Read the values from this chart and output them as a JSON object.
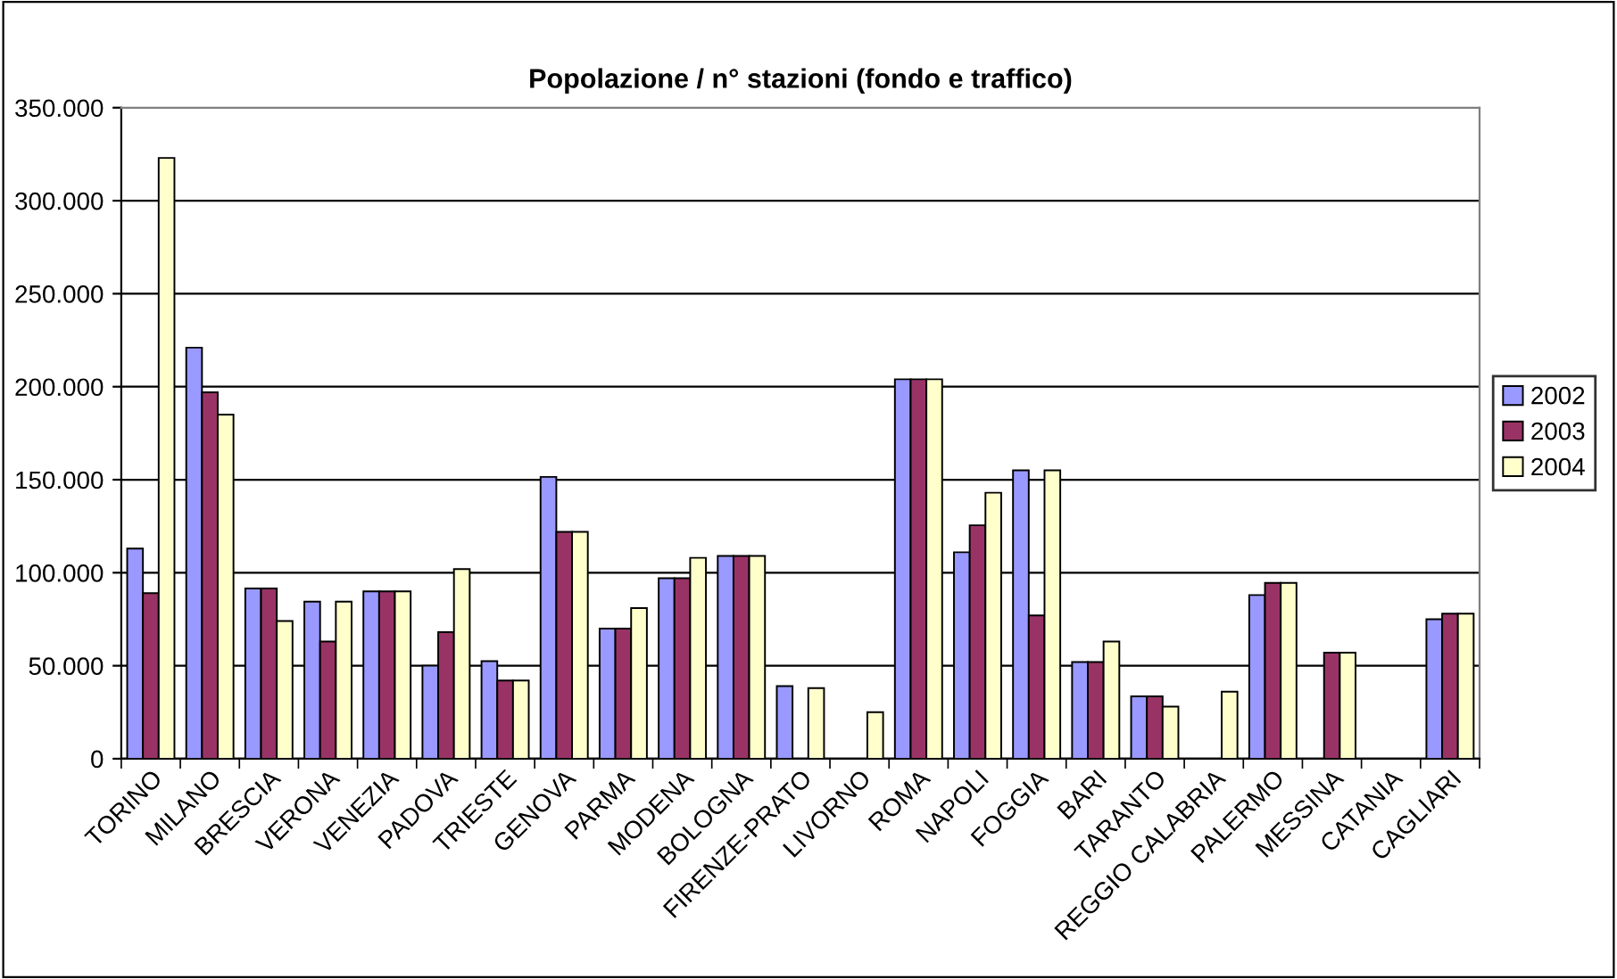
{
  "chart_data": {
    "type": "bar",
    "title": "Popolazione / n° stazioni (fondo e traffico)",
    "categories": [
      "TORINO",
      "MILANO",
      "BRESCIA",
      "VERONA",
      "VENEZIA",
      "PADOVA",
      "TRIESTE",
      "GENOVA",
      "PARMA",
      "MODENA",
      "BOLOGNA",
      "FIRENZE-PRATO",
      "LIVORNO",
      "ROMA",
      "NAPOLI",
      "FOGGIA",
      "BARI",
      "TARANTO",
      "REGGIO CALABRIA",
      "PALERMO",
      "MESSINA",
      "CATANIA",
      "CAGLIARI"
    ],
    "series": [
      {
        "name": "2002",
        "color": "#9999ff",
        "values": [
          113000,
          221000,
          91500,
          84500,
          90000,
          50000,
          52500,
          151500,
          70000,
          97000,
          109000,
          39000,
          null,
          204000,
          111000,
          155000,
          52000,
          33500,
          null,
          88000,
          null,
          null,
          75000
        ]
      },
      {
        "name": "2003",
        "color": "#993366",
        "values": [
          89000,
          197000,
          91500,
          63000,
          90000,
          68000,
          42000,
          122000,
          70000,
          97000,
          109000,
          null,
          null,
          204000,
          125500,
          77000,
          52000,
          33500,
          null,
          94500,
          57000,
          null,
          78000
        ]
      },
      {
        "name": "2004",
        "color": "#ffffcc",
        "values": [
          323000,
          185000,
          74000,
          84500,
          90000,
          102000,
          42000,
          122000,
          81000,
          108000,
          109000,
          38000,
          25000,
          204000,
          143000,
          155000,
          63000,
          28000,
          36000,
          94500,
          57000,
          null,
          78000
        ]
      }
    ],
    "ylim": [
      0,
      350000
    ],
    "yticks": [
      0,
      {
        "value": 50000,
        "label": "50.000"
      },
      {
        "value": 100000,
        "label": "100.000"
      },
      {
        "value": 150000,
        "label": "150.000"
      },
      {
        "value": 200000,
        "label": "200.000"
      },
      {
        "value": 250000,
        "label": "250.000"
      },
      {
        "value": 300000,
        "label": "300.000"
      },
      {
        "value": 350000,
        "label": "350.000"
      }
    ],
    "grid": "y",
    "legend": "right"
  }
}
